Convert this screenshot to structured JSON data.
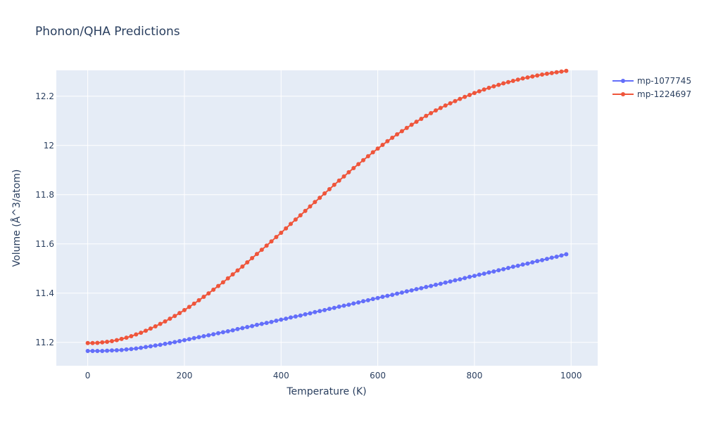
{
  "chart_data": {
    "type": "line",
    "title": "Phonon/QHA Predictions",
    "xlabel": "Temperature (K)",
    "ylabel": "Volume (Å^3/atom)",
    "xlim": [
      -65,
      1055
    ],
    "ylim": [
      11.105,
      12.305
    ],
    "x_ticks": [
      0,
      200,
      400,
      600,
      800,
      1000
    ],
    "y_ticks": [
      11.2,
      11.4,
      11.6,
      11.8,
      12,
      12.2
    ],
    "x_tick_labels": [
      "0",
      "200",
      "400",
      "600",
      "800",
      "1000"
    ],
    "y_tick_labels": [
      "11.2",
      "11.4",
      "11.6",
      "11.8",
      "12",
      "12.2"
    ],
    "grid": true,
    "legend_position": "top-right",
    "series": [
      {
        "name": "mp-1077745",
        "color": "#636efa",
        "x_start": 0,
        "x_step": 10,
        "values": [
          11.165,
          11.165,
          11.165,
          11.165,
          11.166,
          11.167,
          11.168,
          11.169,
          11.171,
          11.173,
          11.175,
          11.178,
          11.181,
          11.184,
          11.187,
          11.19,
          11.194,
          11.197,
          11.201,
          11.205,
          11.209,
          11.213,
          11.217,
          11.221,
          11.225,
          11.229,
          11.233,
          11.237,
          11.241,
          11.245,
          11.249,
          11.254,
          11.258,
          11.262,
          11.266,
          11.271,
          11.275,
          11.279,
          11.283,
          11.288,
          11.292,
          11.296,
          11.301,
          11.305,
          11.309,
          11.314,
          11.318,
          11.323,
          11.327,
          11.331,
          11.336,
          11.34,
          11.345,
          11.349,
          11.353,
          11.358,
          11.362,
          11.367,
          11.371,
          11.376,
          11.38,
          11.385,
          11.389,
          11.393,
          11.398,
          11.402,
          11.407,
          11.411,
          11.416,
          11.42,
          11.425,
          11.429,
          11.434,
          11.438,
          11.443,
          11.447,
          11.452,
          11.456,
          11.461,
          11.466,
          11.47,
          11.475,
          11.479,
          11.484,
          11.488,
          11.493,
          11.497,
          11.502,
          11.507,
          11.511,
          11.516,
          11.52,
          11.525,
          11.53,
          11.534,
          11.539,
          11.544,
          11.548,
          11.553,
          11.558
        ]
      },
      {
        "name": "mp-1224697",
        "color": "#ef553b",
        "x_start": 0,
        "x_step": 10,
        "values": [
          11.197,
          11.197,
          11.198,
          11.2,
          11.202,
          11.205,
          11.209,
          11.214,
          11.219,
          11.225,
          11.232,
          11.239,
          11.247,
          11.256,
          11.265,
          11.275,
          11.285,
          11.296,
          11.307,
          11.319,
          11.331,
          11.344,
          11.357,
          11.371,
          11.385,
          11.399,
          11.414,
          11.429,
          11.444,
          11.46,
          11.476,
          11.492,
          11.508,
          11.525,
          11.542,
          11.559,
          11.576,
          11.593,
          11.61,
          11.628,
          11.645,
          11.663,
          11.681,
          11.699,
          11.716,
          11.734,
          11.752,
          11.77,
          11.787,
          11.805,
          11.822,
          11.84,
          11.857,
          11.874,
          11.891,
          11.908,
          11.924,
          11.94,
          11.956,
          11.972,
          11.987,
          12.002,
          12.017,
          12.031,
          12.045,
          12.058,
          12.071,
          12.084,
          12.096,
          12.108,
          12.12,
          12.131,
          12.142,
          12.152,
          12.162,
          12.171,
          12.18,
          12.189,
          12.197,
          12.205,
          12.213,
          12.22,
          12.227,
          12.234,
          12.24,
          12.246,
          12.252,
          12.257,
          12.262,
          12.267,
          12.272,
          12.276,
          12.28,
          12.284,
          12.288,
          12.291,
          12.294,
          12.297,
          12.3,
          12.303
        ]
      }
    ]
  }
}
